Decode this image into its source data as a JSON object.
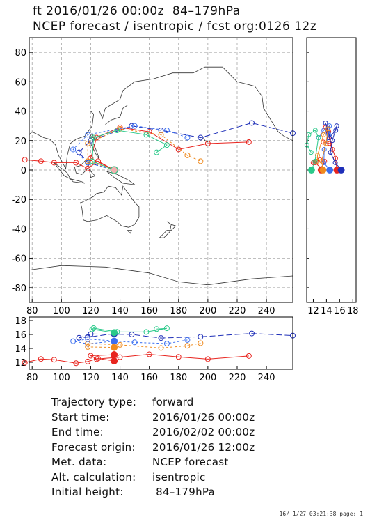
{
  "header": {
    "line1": "ft 2016/01/26 00:00z  84–179hPa",
    "line2": "NCEP forecast / isentropic / fcst org:0126 12z"
  },
  "chart_data": [
    {
      "type": "scatter",
      "panel": "map",
      "xlim": [
        78,
        258
      ],
      "ylim": [
        -90,
        90
      ],
      "xticks": [
        "80",
        "100",
        "120",
        "140",
        "160",
        "180",
        "200",
        "220",
        "240"
      ],
      "yticks": [
        "80",
        "60",
        "40",
        "20",
        "0",
        "-20",
        "-40",
        "-60",
        "-80"
      ],
      "grid": true,
      "series": [
        {
          "color": "#e8251f",
          "values": [
            [
              136,
              0
            ],
            [
              125,
              6
            ],
            [
              118,
              1
            ],
            [
              110,
              5
            ],
            [
              95,
              5
            ],
            [
              86,
              6
            ],
            [
              75,
              7
            ]
          ]
        },
        {
          "color": "#e8251f",
          "values": [
            [
              136,
              0
            ],
            [
              120,
              8
            ],
            [
              124,
              22
            ],
            [
              140,
              29
            ],
            [
              160,
              26
            ],
            [
              180,
              14
            ],
            [
              200,
              18
            ],
            [
              228,
              19
            ]
          ]
        },
        {
          "color": "#1e2fb8",
          "values": [
            [
              136,
              0
            ],
            [
              118,
              5
            ],
            [
              112,
              12
            ],
            [
              120,
              20
            ],
            [
              148,
              30
            ],
            [
              168,
              27
            ],
            [
              195,
              22
            ],
            [
              230,
              32
            ],
            [
              258,
              25
            ]
          ]
        },
        {
          "color": "#3a6ef0",
          "values": [
            [
              136,
              0
            ],
            [
              118,
              5
            ],
            [
              108,
              14
            ],
            [
              118,
              24
            ],
            [
              150,
              30
            ],
            [
              172,
              27
            ],
            [
              186,
              22
            ]
          ]
        },
        {
          "color": "#ef8a1e",
          "values": [
            [
              136,
              0
            ],
            [
              118,
              6
            ],
            [
              118,
              18
            ],
            [
              140,
              28
            ],
            [
              168,
              24
            ],
            [
              186,
              10
            ],
            [
              195,
              6
            ]
          ]
        },
        {
          "color": "#2bc98a",
          "values": [
            [
              136,
              0
            ],
            [
              121,
              6
            ],
            [
              122,
              22
            ],
            [
              138,
              27
            ],
            [
              158,
              24
            ],
            [
              172,
              17
            ],
            [
              165,
              12
            ]
          ]
        }
      ]
    },
    {
      "type": "line",
      "panel": "bottom",
      "xlim": [
        78,
        258
      ],
      "ylim": [
        11,
        18.5
      ],
      "xticks": [
        "80",
        "100",
        "120",
        "140",
        "160",
        "180",
        "200",
        "220",
        "240"
      ],
      "yticks": [
        "18",
        "16",
        "14",
        "12"
      ]
    },
    {
      "type": "line",
      "panel": "right",
      "xlim": [
        11,
        18.5
      ],
      "ylim": [
        -90,
        90
      ],
      "xticks": [
        "12",
        "14",
        "16",
        "18"
      ]
    }
  ],
  "info": [
    {
      "key": "Trajectory type:",
      "value": "forward"
    },
    {
      "key": "Start time:",
      "value": "2016/01/26 00:00z"
    },
    {
      "key": "End time:",
      "value": "2016/02/02 00:00z"
    },
    {
      "key": "Forecast origin:",
      "value": "2016/01/26 12:00z"
    },
    {
      "key": "Met. data:",
      "value": "NCEP forecast"
    },
    {
      "key": "Alt. calculation:",
      "value": "isentropic"
    },
    {
      "key": "Initial height:",
      "value": " 84–179hPa"
    }
  ],
  "footer": "16/ 1/27 03:21:38 page: 1"
}
